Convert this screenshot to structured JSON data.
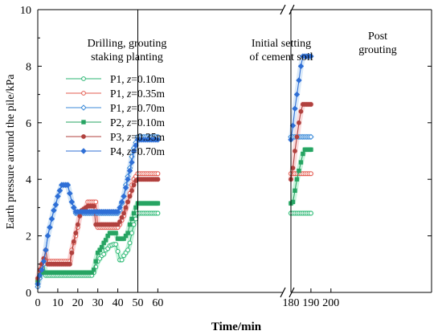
{
  "chart_data": {
    "type": "line",
    "xlabel": "Time/min",
    "ylabel": "Earth pressure around the pile/kPa",
    "xlim": [
      0,
      200
    ],
    "ylim": [
      0,
      10
    ],
    "x_ticks": [
      0,
      10,
      20,
      30,
      40,
      50,
      60,
      180,
      190,
      200
    ],
    "y_ticks": [
      0,
      2,
      4,
      6,
      8,
      10
    ],
    "axis_break": {
      "before": 60,
      "after": 180
    },
    "grid": false,
    "legend_position": "left-middle",
    "phase_dividers": [
      50,
      180
    ],
    "annotations": [
      {
        "lines": [
          "Drilling, grouting",
          "staking planting"
        ]
      },
      {
        "lines": [
          "Initial setting",
          "of cement soil"
        ]
      },
      {
        "lines": [
          "Post",
          "grouting"
        ]
      }
    ],
    "series": [
      {
        "legend_prefix": "P1, ",
        "legend_var": "z",
        "legend_suffix": "=0.10m",
        "color": "#2bb673",
        "shade": "#b8f0d2",
        "marker": "circle-open",
        "points": [
          [
            0,
            0.3
          ],
          [
            1,
            0.6
          ],
          [
            2,
            0.8
          ],
          [
            3,
            1.0
          ],
          [
            4,
            0.6
          ],
          [
            5,
            0.6
          ],
          [
            10,
            0.6
          ],
          [
            16,
            0.6
          ],
          [
            20,
            0.6
          ],
          [
            25,
            0.6
          ],
          [
            27,
            0.6
          ],
          [
            28,
            0.7
          ],
          [
            30,
            1.1
          ],
          [
            31,
            1.2
          ],
          [
            32,
            1.3
          ],
          [
            33,
            1.35
          ],
          [
            34,
            1.5
          ],
          [
            35,
            1.55
          ],
          [
            36,
            1.65
          ],
          [
            38,
            1.7
          ],
          [
            39,
            1.7
          ],
          [
            40,
            1.45
          ],
          [
            41,
            1.15
          ],
          [
            42,
            1.15
          ],
          [
            43,
            1.3
          ],
          [
            45,
            1.5
          ],
          [
            46,
            1.75
          ],
          [
            47,
            2.1
          ],
          [
            48,
            2.4
          ],
          [
            49,
            2.6
          ],
          [
            50,
            2.8
          ],
          [
            51,
            2.8
          ],
          [
            60,
            2.8
          ],
          [
            180,
            2.8
          ],
          [
            190,
            2.8
          ]
        ]
      },
      {
        "legend_prefix": "P1, ",
        "legend_var": "z",
        "legend_suffix": "=0.35m",
        "color": "#e35b4f",
        "shade": "#f8cfd0",
        "marker": "circle-open",
        "points": [
          [
            0,
            0.4
          ],
          [
            1,
            0.7
          ],
          [
            2,
            0.9
          ],
          [
            3,
            1.2
          ],
          [
            4,
            1.1
          ],
          [
            10,
            1.1
          ],
          [
            16,
            1.1
          ],
          [
            17,
            1.5
          ],
          [
            19,
            2.0
          ],
          [
            20,
            2.3
          ],
          [
            21,
            2.8
          ],
          [
            22,
            2.9
          ],
          [
            24,
            3.0
          ],
          [
            25,
            3.2
          ],
          [
            29,
            3.2
          ],
          [
            30,
            2.3
          ],
          [
            35,
            2.3
          ],
          [
            40,
            2.3
          ],
          [
            41,
            2.4
          ],
          [
            43,
            2.7
          ],
          [
            45,
            3.2
          ],
          [
            47,
            3.8
          ],
          [
            48,
            4.0
          ],
          [
            49,
            4.1
          ],
          [
            50,
            4.2
          ],
          [
            60,
            4.2
          ],
          [
            180,
            4.2
          ],
          [
            190,
            4.2
          ]
        ]
      },
      {
        "legend_prefix": "P1, ",
        "legend_var": "z",
        "legend_suffix": "=0.70m",
        "color": "#3b8ad8",
        "shade": "#cfe3f7",
        "marker": "diamond-open",
        "points": [
          [
            0,
            0.2
          ],
          [
            1,
            0.5
          ],
          [
            2,
            0.7
          ],
          [
            3,
            1.0
          ],
          [
            4,
            1.5
          ],
          [
            5,
            2.0
          ],
          [
            6,
            2.3
          ],
          [
            7,
            2.6
          ],
          [
            8,
            2.9
          ],
          [
            9,
            3.1
          ],
          [
            10,
            3.4
          ],
          [
            11,
            3.6
          ],
          [
            12,
            3.8
          ],
          [
            15,
            3.8
          ],
          [
            16,
            3.5
          ],
          [
            17,
            3.2
          ],
          [
            18,
            3.0
          ],
          [
            19,
            2.8
          ],
          [
            20,
            2.8
          ],
          [
            30,
            2.8
          ],
          [
            40,
            2.8
          ],
          [
            41,
            2.9
          ],
          [
            43,
            3.4
          ],
          [
            44,
            3.8
          ],
          [
            45,
            4.1
          ],
          [
            46,
            4.4
          ],
          [
            47,
            4.8
          ],
          [
            48,
            5.1
          ],
          [
            49,
            5.3
          ],
          [
            50,
            5.5
          ],
          [
            60,
            5.5
          ],
          [
            180,
            5.5
          ],
          [
            190,
            5.5
          ]
        ]
      },
      {
        "legend_prefix": "P2, ",
        "legend_var": "z",
        "legend_suffix": "=0.10m",
        "color": "#27a463",
        "shade": "#b8f0d2",
        "marker": "square-filled",
        "points": [
          [
            0,
            0.4
          ],
          [
            1,
            0.6
          ],
          [
            2,
            0.7
          ],
          [
            3,
            0.7
          ],
          [
            10,
            0.7
          ],
          [
            20,
            0.7
          ],
          [
            27,
            0.7
          ],
          [
            28,
            0.8
          ],
          [
            29,
            1.1
          ],
          [
            30,
            1.4
          ],
          [
            31,
            1.5
          ],
          [
            32,
            1.6
          ],
          [
            33,
            1.75
          ],
          [
            34,
            1.85
          ],
          [
            35,
            2.0
          ],
          [
            36,
            2.1
          ],
          [
            38,
            2.1
          ],
          [
            39,
            2.1
          ],
          [
            40,
            1.9
          ],
          [
            43,
            1.9
          ],
          [
            44,
            2.0
          ],
          [
            45,
            2.1
          ],
          [
            46,
            2.4
          ],
          [
            47,
            2.6
          ],
          [
            48,
            2.8
          ],
          [
            49,
            3.0
          ],
          [
            50,
            3.15
          ],
          [
            60,
            3.15
          ],
          [
            180,
            3.15
          ],
          [
            181,
            3.2
          ],
          [
            182,
            3.6
          ],
          [
            183,
            4.0
          ],
          [
            184,
            4.3
          ],
          [
            185,
            4.6
          ],
          [
            186,
            4.9
          ],
          [
            187,
            5.05
          ],
          [
            190,
            5.05
          ]
        ]
      },
      {
        "legend_prefix": "P3, ",
        "legend_var": "z",
        "legend_suffix": "=0.35m",
        "color": "#b0413e",
        "shade": "#f8cfd0",
        "marker": "circle-filled",
        "points": [
          [
            0,
            0.5
          ],
          [
            1,
            0.8
          ],
          [
            2,
            1.0
          ],
          [
            3,
            1.2
          ],
          [
            4,
            1.5
          ],
          [
            5,
            1.0
          ],
          [
            10,
            1.0
          ],
          [
            16,
            1.0
          ],
          [
            17,
            1.4
          ],
          [
            18,
            1.8
          ],
          [
            19,
            2.1
          ],
          [
            20,
            2.4
          ],
          [
            21,
            2.7
          ],
          [
            22,
            2.9
          ],
          [
            24,
            3.0
          ],
          [
            25,
            3.05
          ],
          [
            28,
            3.05
          ],
          [
            29,
            2.4
          ],
          [
            30,
            2.4
          ],
          [
            40,
            2.4
          ],
          [
            41,
            2.5
          ],
          [
            43,
            2.8
          ],
          [
            45,
            3.2
          ],
          [
            47,
            3.6
          ],
          [
            48,
            3.8
          ],
          [
            49,
            3.95
          ],
          [
            50,
            4.0
          ],
          [
            60,
            4.0
          ],
          [
            180,
            4.0
          ],
          [
            181,
            4.4
          ],
          [
            182,
            5.0
          ],
          [
            183,
            5.5
          ],
          [
            184,
            6.0
          ],
          [
            185,
            6.4
          ],
          [
            186,
            6.65
          ],
          [
            190,
            6.65
          ]
        ]
      },
      {
        "legend_prefix": "P4, ",
        "legend_var": "z",
        "legend_suffix": "=0.70m",
        "color": "#2f6fd6",
        "shade": "#cfe3f7",
        "marker": "diamond-filled",
        "points": [
          [
            0,
            0.3
          ],
          [
            1,
            0.6
          ],
          [
            2,
            0.8
          ],
          [
            3,
            1.1
          ],
          [
            4,
            1.5
          ],
          [
            5,
            2.0
          ],
          [
            6,
            2.3
          ],
          [
            7,
            2.6
          ],
          [
            8,
            2.9
          ],
          [
            9,
            3.1
          ],
          [
            10,
            3.4
          ],
          [
            11,
            3.6
          ],
          [
            12,
            3.8
          ],
          [
            15,
            3.8
          ],
          [
            16,
            3.5
          ],
          [
            17,
            3.2
          ],
          [
            18,
            3.0
          ],
          [
            19,
            2.85
          ],
          [
            20,
            2.85
          ],
          [
            30,
            2.85
          ],
          [
            40,
            2.85
          ],
          [
            41,
            3.0
          ],
          [
            43,
            3.4
          ],
          [
            44,
            3.7
          ],
          [
            45,
            4.0
          ],
          [
            46,
            4.3
          ],
          [
            47,
            4.6
          ],
          [
            48,
            5.0
          ],
          [
            49,
            5.2
          ],
          [
            50,
            5.4
          ],
          [
            60,
            5.4
          ],
          [
            180,
            5.4
          ],
          [
            181,
            5.9
          ],
          [
            182,
            6.5
          ],
          [
            183,
            7.0
          ],
          [
            184,
            7.5
          ],
          [
            185,
            8.0
          ],
          [
            186,
            8.35
          ],
          [
            190,
            8.35
          ]
        ]
      }
    ]
  }
}
